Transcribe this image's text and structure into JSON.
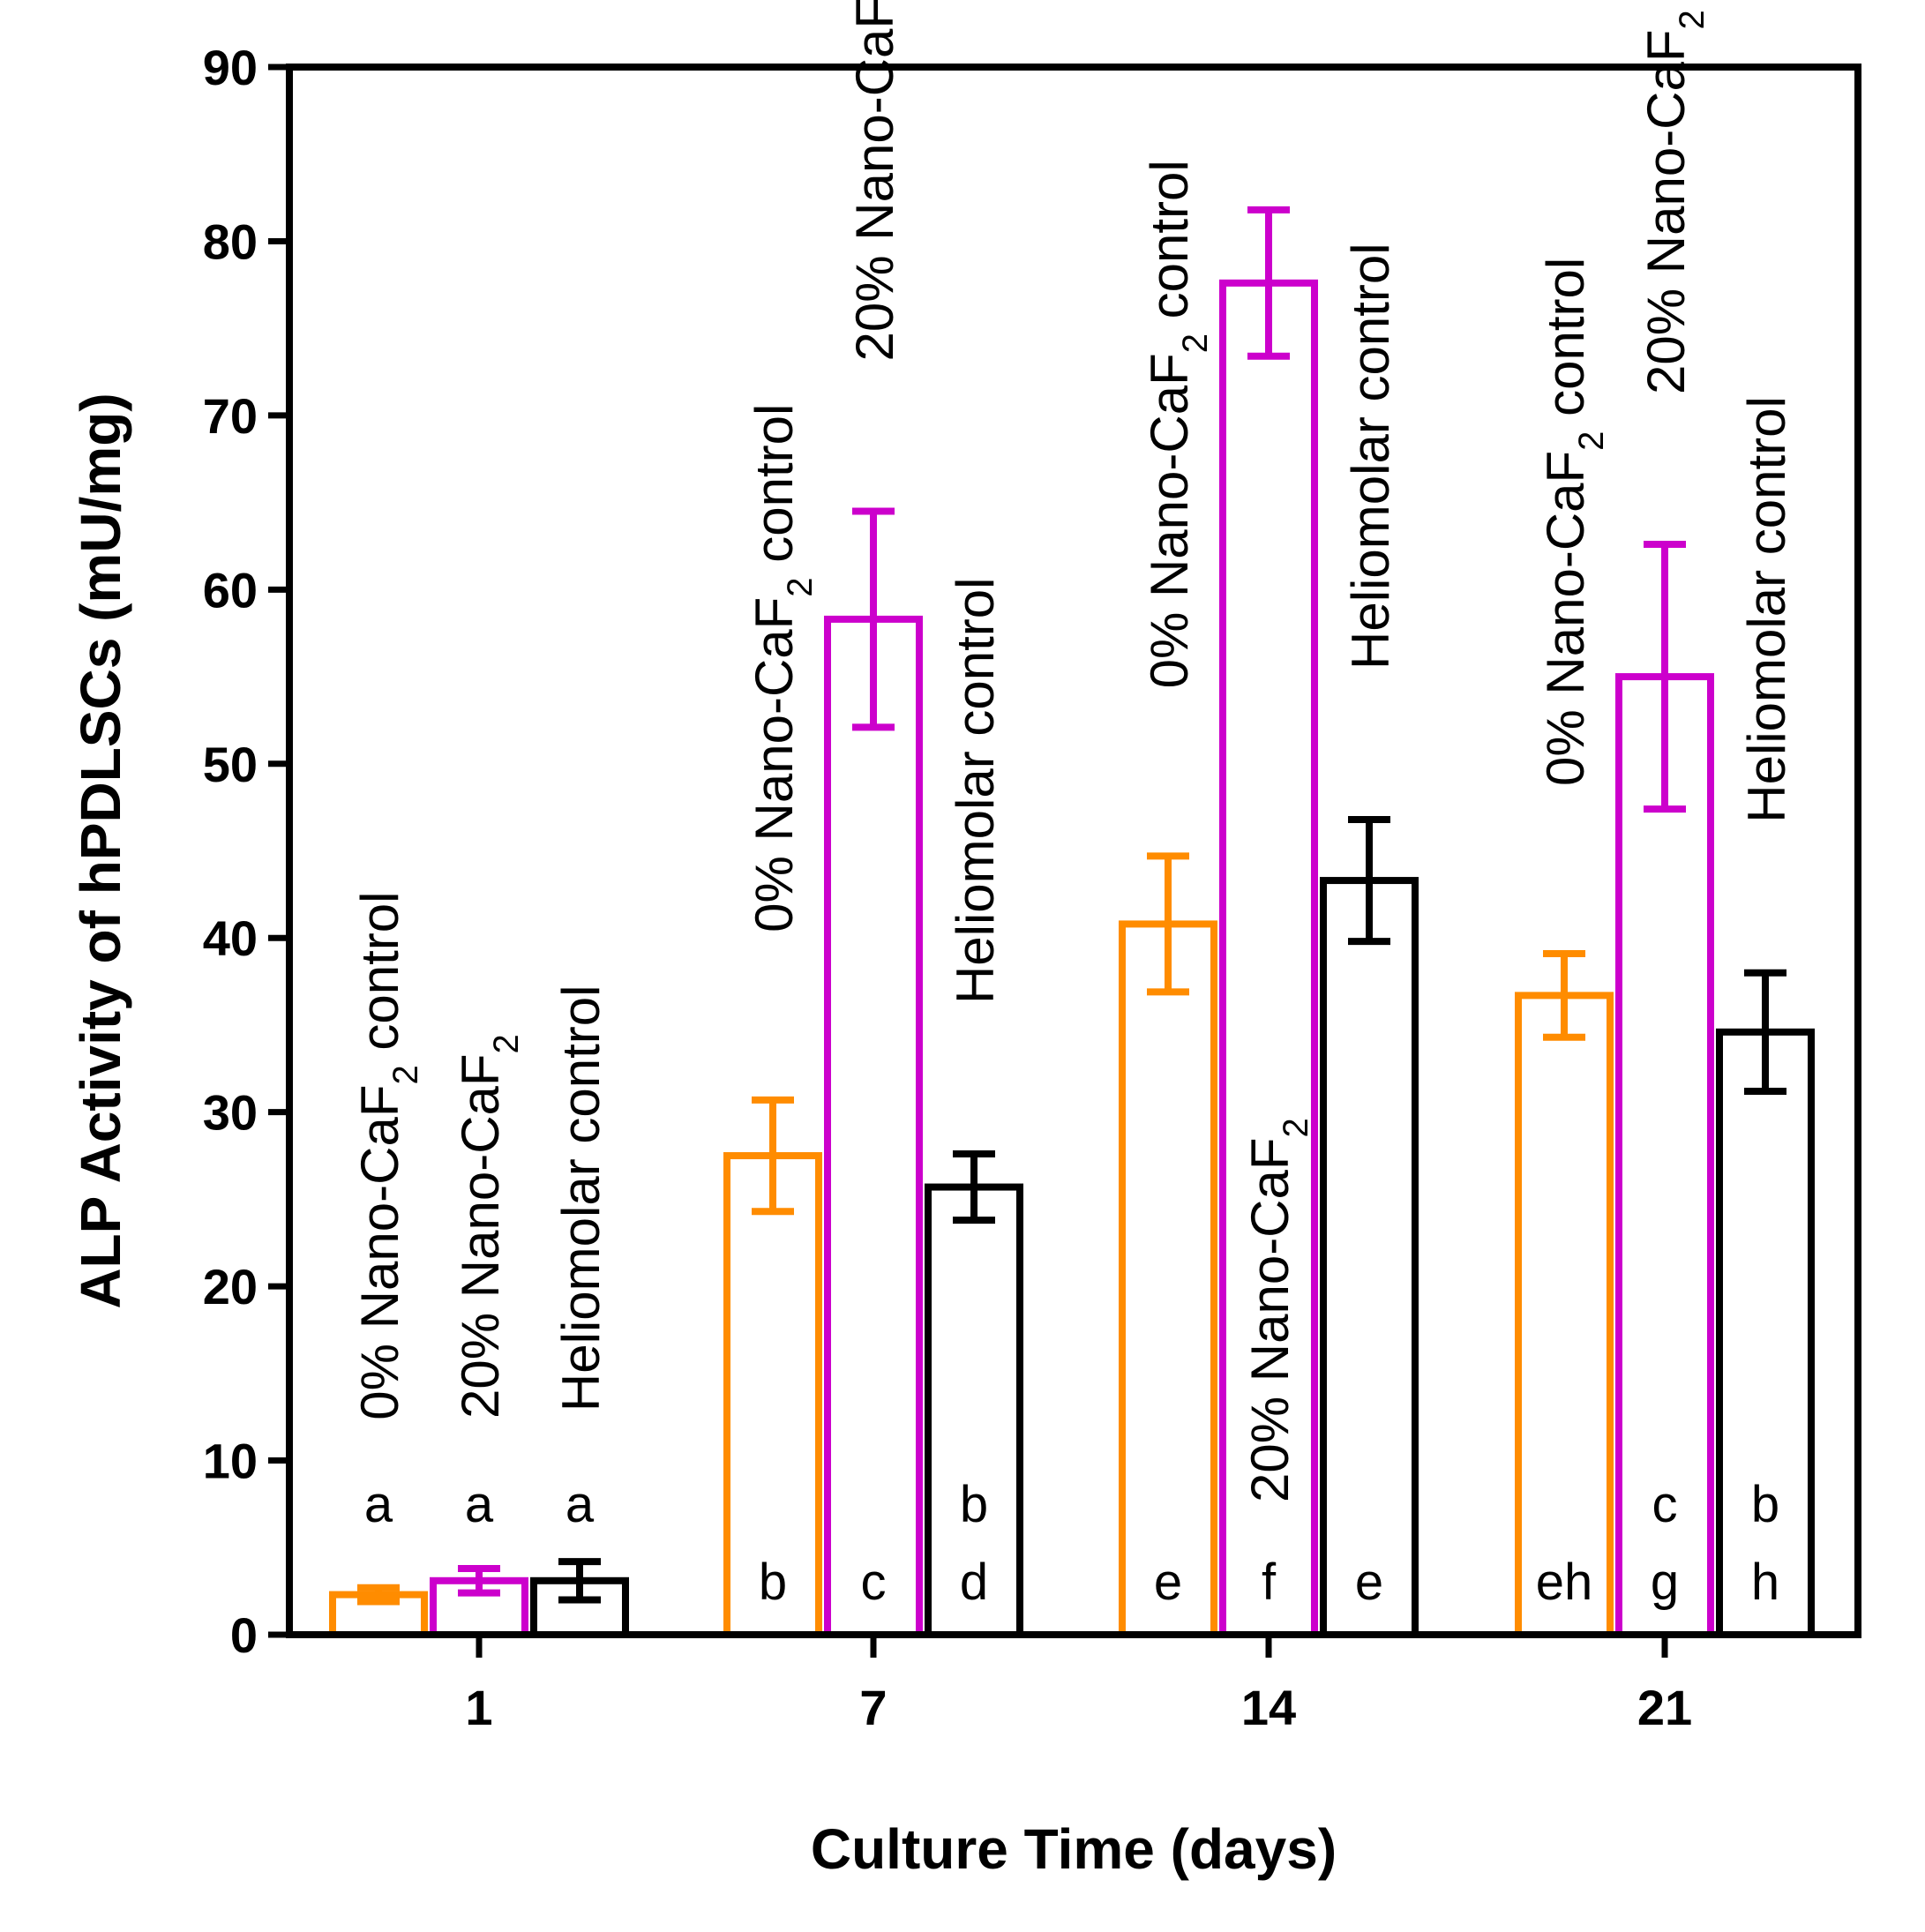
{
  "chart_data": {
    "type": "bar",
    "title": "",
    "xlabel": "Culture Time (days)",
    "ylabel": "ALP Activity of hPDLSCs  (mU/mg)",
    "ylim": [
      0,
      90
    ],
    "yticks": [
      0,
      10,
      20,
      30,
      40,
      50,
      60,
      70,
      80,
      90
    ],
    "categories": [
      "1",
      "7",
      "14",
      "21"
    ],
    "legend": "none",
    "grid": false,
    "series": [
      {
        "name": "0% Nano-CaF2 control",
        "label_parts": [
          "0% Nano-CaF",
          "2",
          " control"
        ],
        "color": "#FF8C00",
        "values": [
          2.3,
          27.5,
          40.8,
          36.7
        ],
        "errors": [
          0.4,
          3.2,
          3.9,
          2.4
        ],
        "top_letters": [
          "a",
          "",
          "",
          ""
        ],
        "bottom_letters": [
          "",
          "b",
          "e",
          "eh"
        ]
      },
      {
        "name": "20% Nano-CaF2",
        "label_parts": [
          "20% Nano-CaF",
          "2",
          ""
        ],
        "color": "#CC00CC",
        "values": [
          3.1,
          58.3,
          77.6,
          55.0
        ],
        "errors": [
          0.7,
          6.2,
          4.2,
          7.6
        ],
        "top_letters": [
          "a",
          "",
          "",
          "c"
        ],
        "bottom_letters": [
          "",
          "c",
          "f",
          "g"
        ]
      },
      {
        "name": "Heliomolar control",
        "label_parts": [
          "Heliomolar control",
          "",
          ""
        ],
        "color": "#000000",
        "values": [
          3.1,
          25.7,
          43.3,
          34.6
        ],
        "errors": [
          1.1,
          1.9,
          3.5,
          3.4
        ],
        "top_letters": [
          "a",
          "b",
          "",
          "b"
        ],
        "bottom_letters": [
          "",
          "d",
          "e",
          "h"
        ]
      }
    ]
  }
}
